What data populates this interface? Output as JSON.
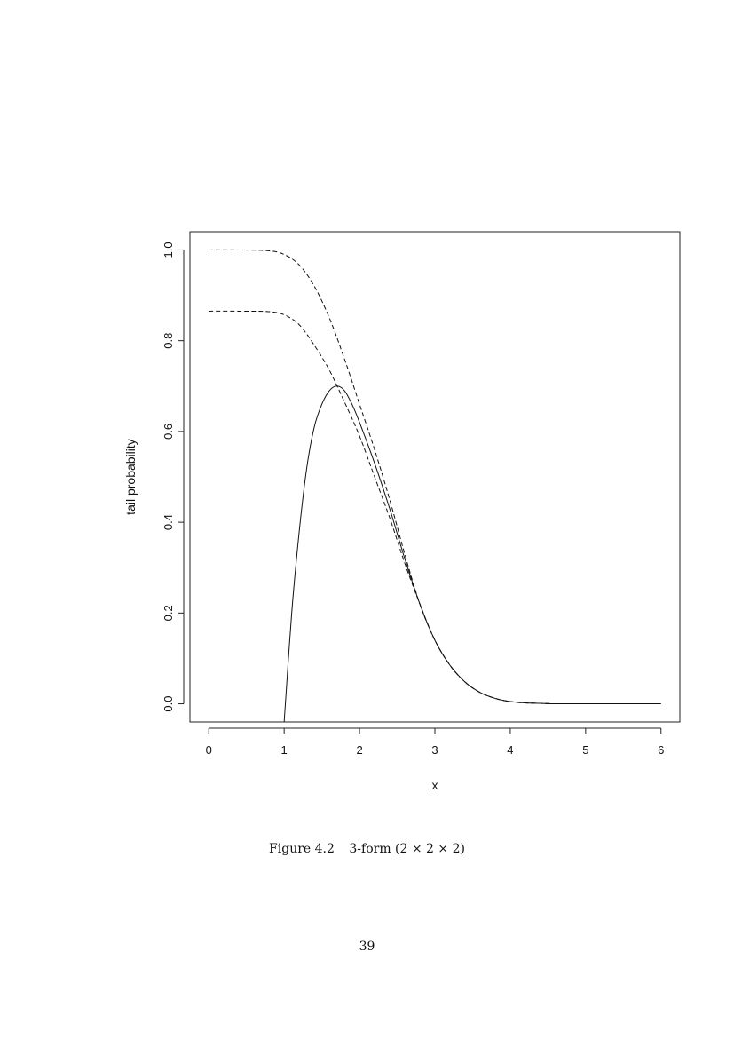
{
  "chart_data": {
    "type": "line",
    "xlabel": "x",
    "ylabel": "tail probability",
    "xlim": [
      -0.25,
      6.25
    ],
    "ylim": [
      -0.04,
      1.04
    ],
    "x_ticks": [
      "0",
      "1",
      "2",
      "3",
      "4",
      "5",
      "6"
    ],
    "y_ticks": [
      "0.0",
      "0.2",
      "0.4",
      "0.6",
      "0.8",
      "1.0"
    ],
    "grid": false,
    "series": [
      {
        "style": "dashed",
        "x": [
          0,
          0.4,
          0.8,
          1.0,
          1.2,
          1.4,
          1.6,
          1.8,
          2.0,
          2.2,
          2.4,
          2.6,
          2.8,
          3.0,
          3.2,
          3.4,
          3.6,
          3.8,
          4.0,
          4.2,
          4.4,
          4.6
        ],
        "y": [
          1.0,
          1.0,
          0.998,
          0.99,
          0.967,
          0.92,
          0.85,
          0.76,
          0.66,
          0.56,
          0.45,
          0.33,
          0.22,
          0.14,
          0.085,
          0.048,
          0.025,
          0.012,
          0.005,
          0.002,
          0.001,
          0.0
        ]
      },
      {
        "style": "dashed",
        "x": [
          0,
          0.4,
          0.8,
          1.0,
          1.2,
          1.4,
          1.6,
          1.8,
          2.0,
          2.2,
          2.4,
          2.6,
          2.8,
          3.0,
          3.2,
          3.4,
          3.6,
          3.8,
          4.0,
          4.2,
          4.4,
          4.6
        ],
        "y": [
          0.865,
          0.865,
          0.864,
          0.857,
          0.835,
          0.79,
          0.735,
          0.665,
          0.59,
          0.5,
          0.41,
          0.31,
          0.22,
          0.14,
          0.085,
          0.048,
          0.025,
          0.012,
          0.005,
          0.002,
          0.001,
          0.0
        ]
      },
      {
        "style": "solid",
        "x": [
          1.0,
          1.1,
          1.2,
          1.3,
          1.4,
          1.5,
          1.6,
          1.7,
          1.8,
          1.9,
          2.0,
          2.2,
          2.4,
          2.6,
          2.8,
          3.0,
          3.2,
          3.4,
          3.6,
          3.8,
          4.0,
          4.2,
          4.4,
          4.6,
          5.0,
          5.5,
          6.0
        ],
        "y": [
          -0.04,
          0.2,
          0.38,
          0.52,
          0.61,
          0.66,
          0.69,
          0.7,
          0.69,
          0.66,
          0.62,
          0.53,
          0.43,
          0.32,
          0.22,
          0.14,
          0.085,
          0.048,
          0.025,
          0.012,
          0.005,
          0.002,
          0.001,
          0.0,
          0.0,
          0.0,
          0.0
        ]
      }
    ]
  },
  "caption": {
    "label": "Figure 4.2",
    "text": "3-form  (2 × 2 × 2)"
  },
  "page_number": "39"
}
